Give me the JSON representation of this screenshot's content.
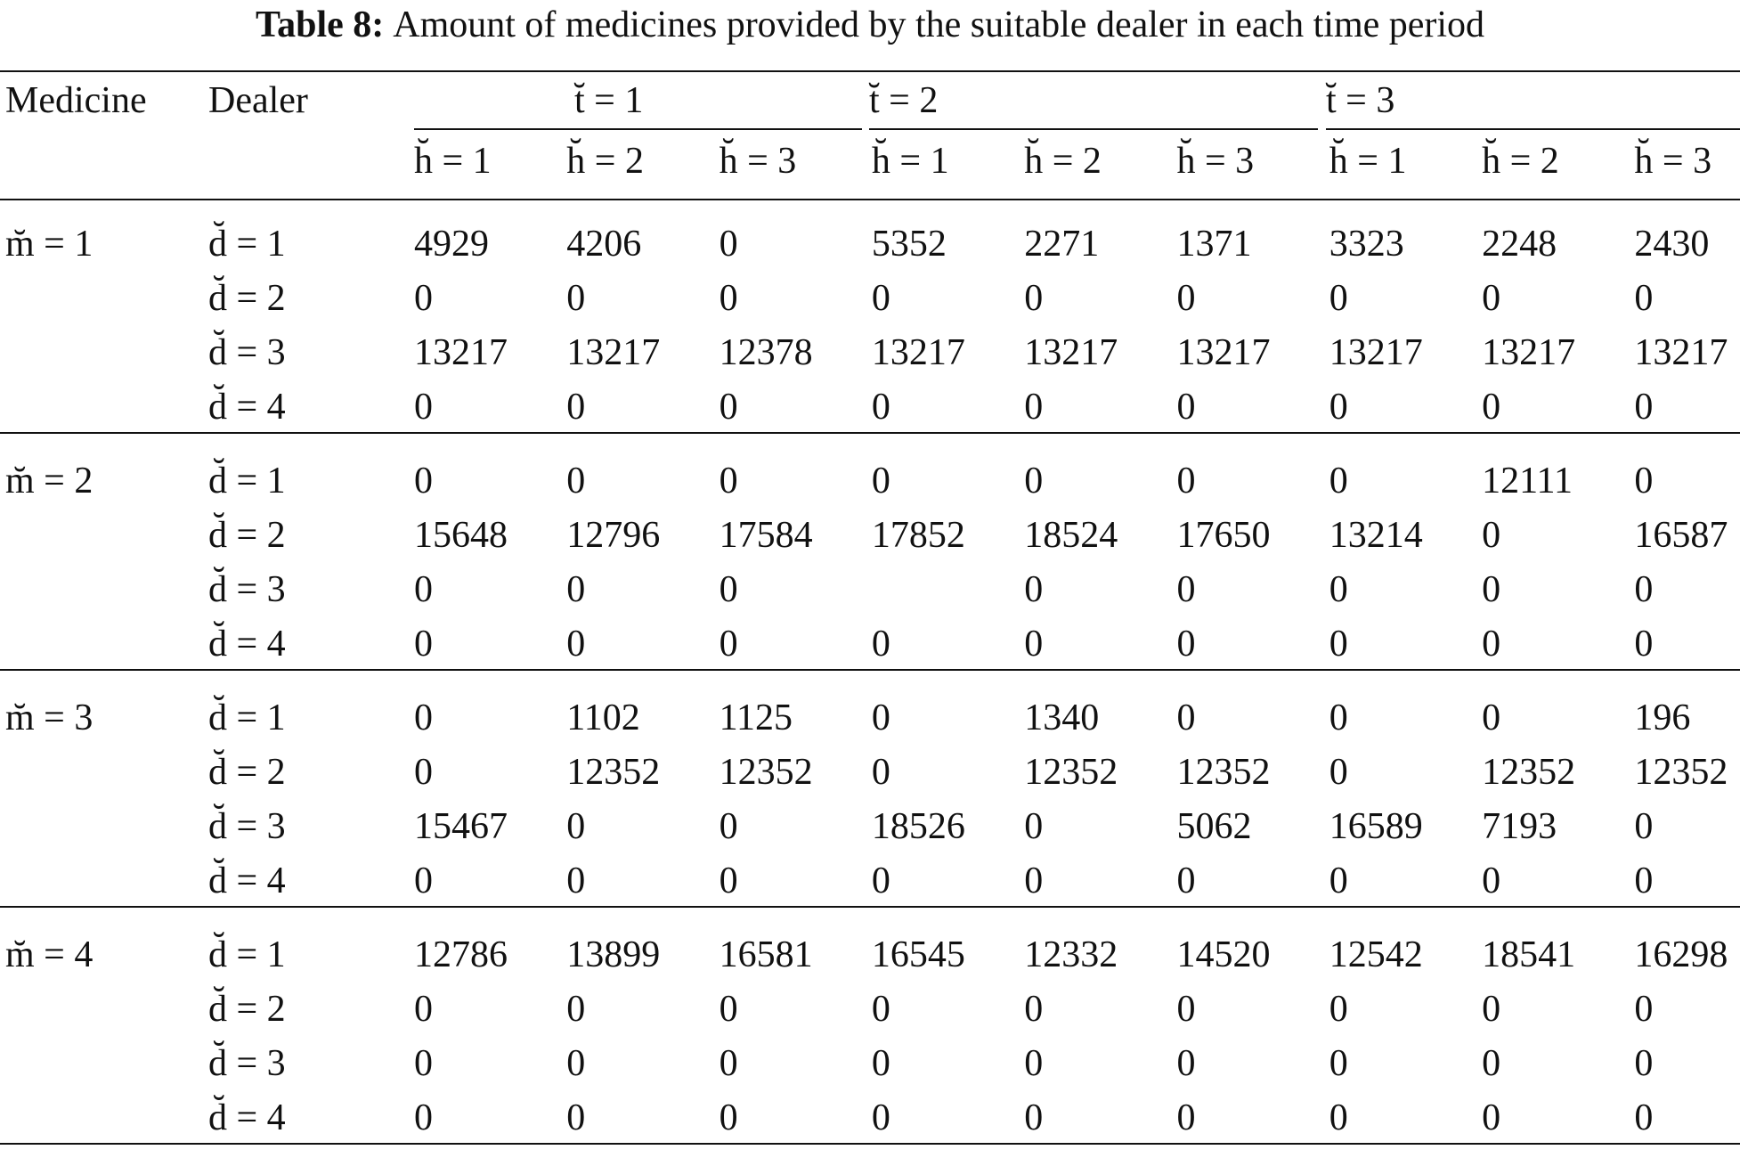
{
  "caption": {
    "label": "Table 8:",
    "text": "Amount of medicines provided by the suitable dealer in each time period"
  },
  "table": {
    "columns": [
      "Medicine",
      "Dealer"
    ],
    "time_headers": [
      "t̆ = 1",
      "t̆ = 2",
      "t̆ = 3"
    ],
    "horizon_headers": [
      "h̆ = 1",
      "h̆ = 2",
      "h̆ = 3",
      "h̆ = 1",
      "h̆ = 2",
      "h̆ = 3",
      "h̆ = 1",
      "h̆ = 2",
      "h̆ = 3"
    ],
    "groups": [
      {
        "medicine": "m̆ = 1",
        "rows": [
          {
            "dealer": "d̆ = 1",
            "values": [
              4929,
              4206,
              0,
              5352,
              2271,
              1371,
              3323,
              2248,
              2430
            ]
          },
          {
            "dealer": "d̆ = 2",
            "values": [
              0,
              0,
              0,
              0,
              0,
              0,
              0,
              0,
              0
            ]
          },
          {
            "dealer": "d̆ = 3",
            "values": [
              13217,
              13217,
              12378,
              13217,
              13217,
              13217,
              13217,
              13217,
              13217
            ]
          },
          {
            "dealer": "d̆ = 4",
            "values": [
              0,
              0,
              0,
              0,
              0,
              0,
              0,
              0,
              0
            ]
          }
        ]
      },
      {
        "medicine": "m̆ = 2",
        "rows": [
          {
            "dealer": "d̆ = 1",
            "values": [
              0,
              0,
              0,
              0,
              0,
              0,
              0,
              12111,
              0
            ]
          },
          {
            "dealer": "d̆ = 2",
            "values": [
              15648,
              12796,
              17584,
              17852,
              18524,
              17650,
              13214,
              0,
              16587
            ]
          },
          {
            "dealer": "d̆ = 3",
            "values": [
              0,
              0,
              0,
              null,
              0,
              0,
              0,
              0,
              0
            ]
          },
          {
            "dealer": "d̆ = 4",
            "values": [
              0,
              0,
              0,
              0,
              0,
              0,
              0,
              0,
              0
            ]
          }
        ]
      },
      {
        "medicine": "m̆ = 3",
        "rows": [
          {
            "dealer": "d̆ = 1",
            "values": [
              0,
              1102,
              1125,
              0,
              1340,
              0,
              0,
              0,
              196
            ]
          },
          {
            "dealer": "d̆ = 2",
            "values": [
              0,
              12352,
              12352,
              0,
              12352,
              12352,
              0,
              12352,
              12352
            ]
          },
          {
            "dealer": "d̆ = 3",
            "values": [
              15467,
              0,
              0,
              18526,
              0,
              5062,
              16589,
              7193,
              0
            ]
          },
          {
            "dealer": "d̆ = 4",
            "values": [
              0,
              0,
              0,
              0,
              0,
              0,
              0,
              0,
              0
            ]
          }
        ]
      },
      {
        "medicine": "m̆ = 4",
        "rows": [
          {
            "dealer": "d̆ = 1",
            "values": [
              12786,
              13899,
              16581,
              16545,
              12332,
              14520,
              12542,
              18541,
              16298
            ]
          },
          {
            "dealer": "d̆ = 2",
            "values": [
              0,
              0,
              0,
              0,
              0,
              0,
              0,
              0,
              0
            ]
          },
          {
            "dealer": "d̆ = 3",
            "values": [
              0,
              0,
              0,
              0,
              0,
              0,
              0,
              0,
              0
            ]
          },
          {
            "dealer": "d̆ = 4",
            "values": [
              0,
              0,
              0,
              0,
              0,
              0,
              0,
              0,
              0
            ]
          }
        ]
      }
    ]
  }
}
